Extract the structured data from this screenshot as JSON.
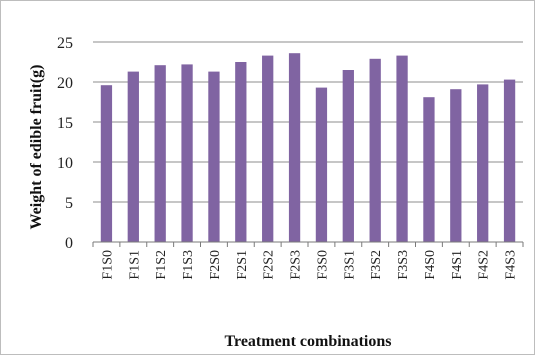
{
  "chart_data": {
    "type": "bar",
    "title": "",
    "xlabel": "Treatment combinations",
    "ylabel": "Weight of edible fruit(g)",
    "ylim": [
      0,
      25
    ],
    "yticks": [
      0,
      5,
      10,
      15,
      20,
      25
    ],
    "grid": true,
    "legend": "none",
    "bar_color": "#8064A2",
    "categories": [
      "F1S0",
      "F1S1",
      "F1S2",
      "F1S3",
      "F2S0",
      "F2S1",
      "F2S2",
      "F2S3",
      "F3S0",
      "F3S1",
      "F3S2",
      "F3S3",
      "F4S0",
      "F4S1",
      "F4S2",
      "F4S3"
    ],
    "values": [
      19.6,
      21.3,
      22.1,
      22.2,
      21.3,
      22.5,
      23.3,
      23.6,
      19.3,
      21.5,
      22.9,
      23.3,
      18.1,
      19.1,
      19.7,
      20.3
    ]
  }
}
